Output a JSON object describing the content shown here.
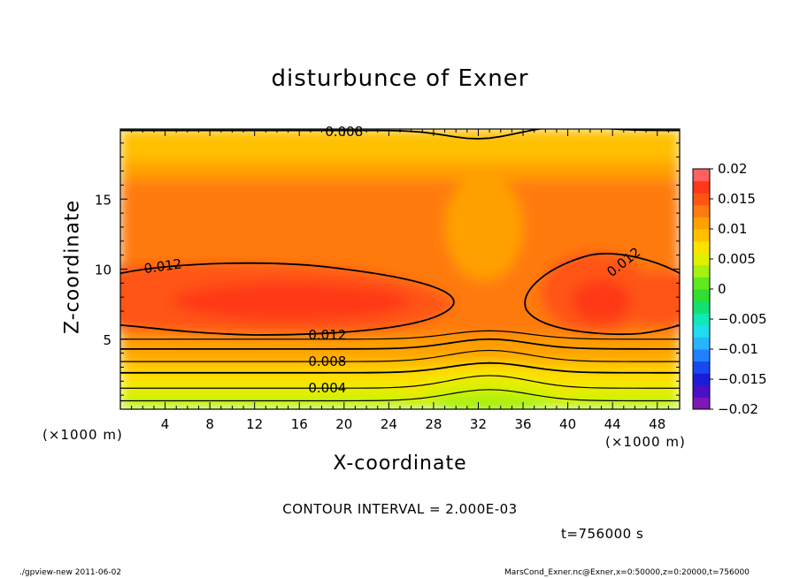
{
  "title": "disturbunce of Exner",
  "xlabel": "X-coordinate",
  "ylabel": "Z-coordinate",
  "x_unit_left": "(×1000 m)",
  "x_unit_right": "(×1000 m)",
  "contour_interval_text": "CONTOUR INTERVAL = 2.000E-03",
  "time_text": "t=756000 s",
  "footer_left": "./gpview-new  2011-06-02",
  "footer_right": "MarsCond_Exner.nc@Exner,x=0:50000,z=0:20000,t=756000",
  "chart_data": {
    "type": "heatmap",
    "title": "disturbunce of Exner",
    "xlabel": "X-coordinate",
    "ylabel": "Z-coordinate",
    "xlim": [
      0,
      50
    ],
    "ylim": [
      0,
      20
    ],
    "x_ticks": [
      4,
      8,
      12,
      16,
      20,
      24,
      28,
      32,
      36,
      40,
      44,
      48
    ],
    "y_ticks": [
      5,
      10,
      15
    ],
    "contour_interval": 0.002,
    "contour_labels": [
      {
        "x": 3.8,
        "z": 10.2,
        "text": "0.012"
      },
      {
        "x": 18.5,
        "z": 5.3,
        "text": "0.012"
      },
      {
        "x": 45.0,
        "z": 10.5,
        "text": "0.012"
      },
      {
        "x": 18.5,
        "z": 3.4,
        "text": "0.008"
      },
      {
        "x": 18.5,
        "z": 1.5,
        "text": "0.004"
      },
      {
        "x": 20.0,
        "z": 19.8,
        "text": "0.008"
      }
    ],
    "colorbar": {
      "labels": [
        "0.02",
        "0.015",
        "0.01",
        "0.005",
        "0",
        "−0.005",
        "−0.01",
        "−0.015",
        "−0.02"
      ],
      "levels": [
        -0.02,
        -0.018,
        -0.016,
        -0.014,
        -0.012,
        -0.01,
        -0.008,
        -0.006,
        -0.004,
        -0.002,
        0,
        0.002,
        0.004,
        0.006,
        0.008,
        0.01,
        0.012,
        0.014,
        0.016,
        0.018,
        0.02
      ],
      "colors": [
        "#7a18b8",
        "#4a10c8",
        "#1c1cd8",
        "#1848f0",
        "#2280ff",
        "#28b4ff",
        "#20dcf0",
        "#10e8b8",
        "#12e070",
        "#30e030",
        "#60e820",
        "#a8f010",
        "#e0f000",
        "#ffe000",
        "#ffc000",
        "#ffa000",
        "#ff7a10",
        "#ff5514",
        "#ff3818",
        "#ff6060",
        "#ff9898"
      ]
    }
  }
}
